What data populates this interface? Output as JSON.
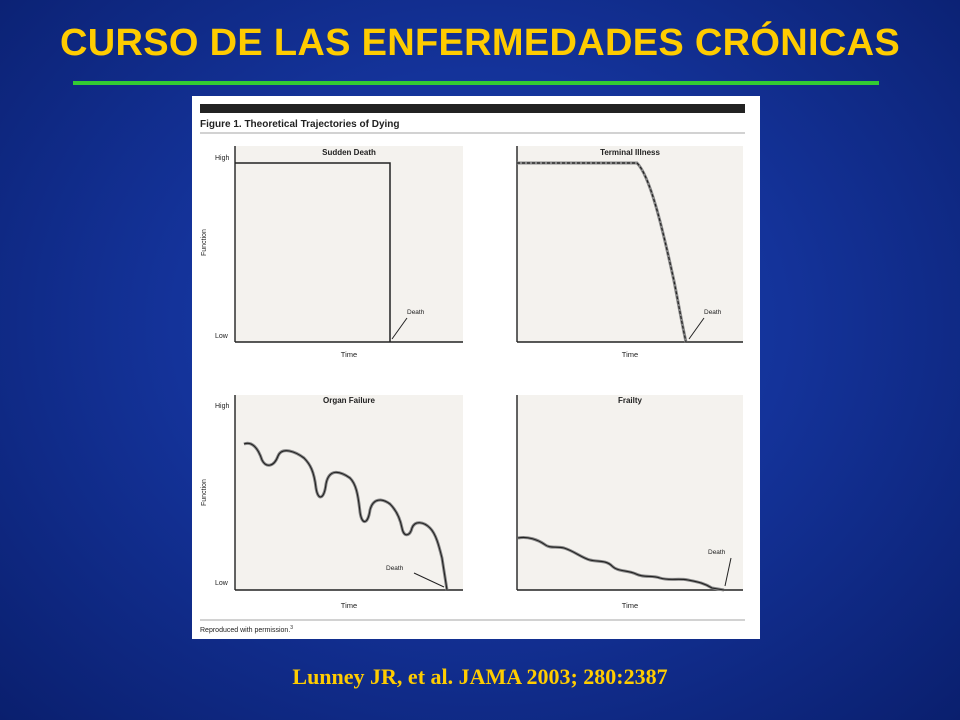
{
  "slide": {
    "title": "CURSO DE LAS ENFERMEDADES CRÓNICAS",
    "citation": "Lunney JR, et al. JAMA 2003; 280:2387",
    "colors": {
      "title": "#ffcc00",
      "rule": "#33cc33",
      "background": "#14339a",
      "panel_bg": "#f4f2ee"
    }
  },
  "figure": {
    "title": "Figure 1. Theoretical Trajectories of Dying",
    "footer": "Reproduced with permission.",
    "footer_ref": "3",
    "panels": [
      {
        "title": "Sudden Death",
        "y_label": "Function",
        "y_high": "High",
        "y_low": "Low",
        "x_label": "Time",
        "death_label": "Death"
      },
      {
        "title": "Terminal Illness",
        "x_label": "Time",
        "death_label": "Death"
      },
      {
        "title": "Organ Failure",
        "y_label": "Function",
        "y_high": "High",
        "y_low": "Low",
        "x_label": "Time",
        "death_label": "Death"
      },
      {
        "title": "Frailty",
        "x_label": "Time",
        "death_label": "Death"
      }
    ]
  }
}
